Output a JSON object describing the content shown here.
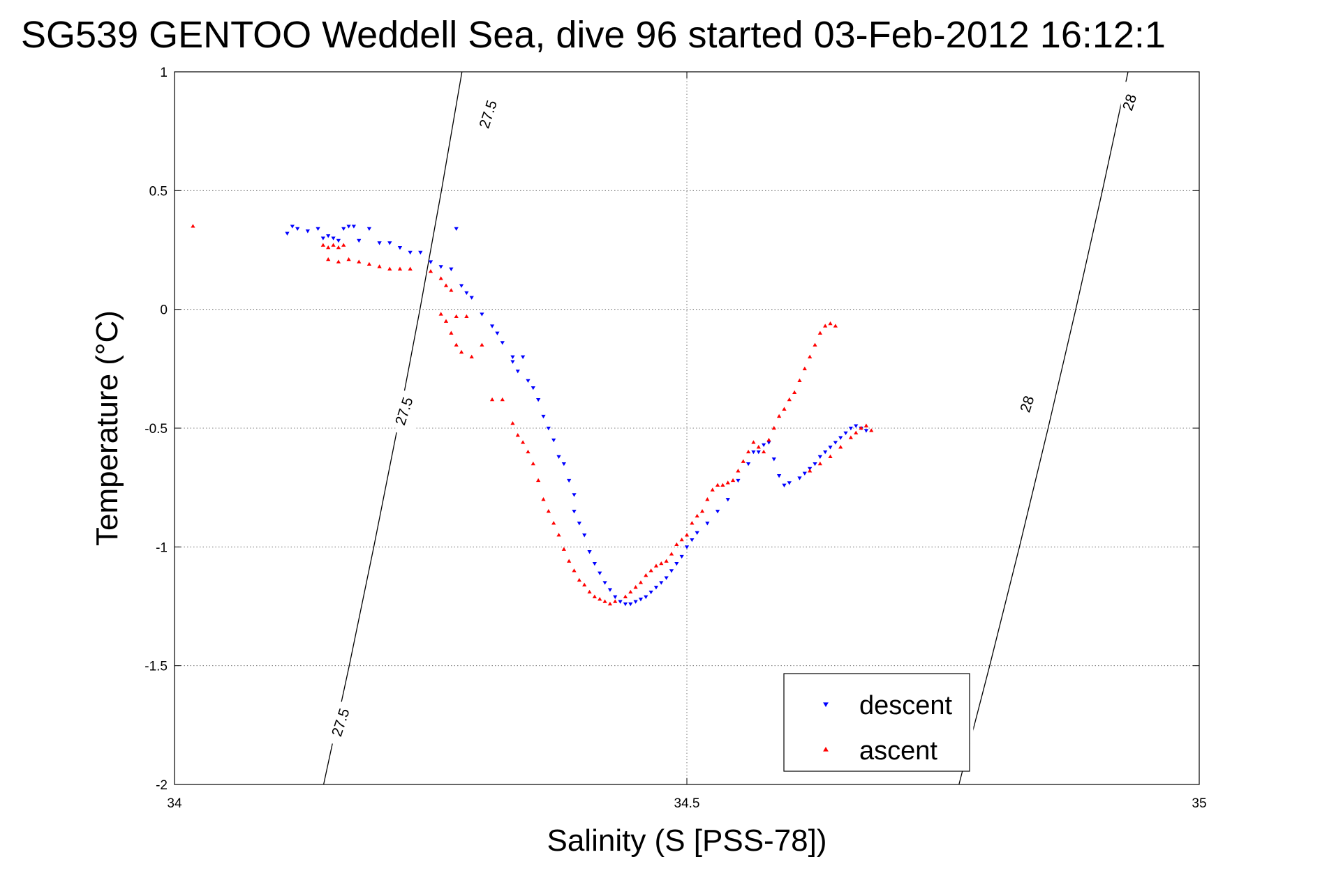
{
  "chart_data": {
    "type": "scatter",
    "title": "SG539 GENTOO Weddell Sea, dive 96 started 03-Feb-2012 16:12:1",
    "xlabel": "Salinity (S [PSS-78])",
    "ylabel": "Temperature (°C)",
    "xlim": [
      34,
      35
    ],
    "ylim": [
      -2,
      1
    ],
    "xticks": [
      34,
      34.5,
      35
    ],
    "xtick_labels": [
      "34",
      "34.5",
      "35"
    ],
    "yticks": [
      -2,
      -1.5,
      -1,
      -0.5,
      0,
      0.5,
      1
    ],
    "ytick_labels": [
      "-2",
      "-1.5",
      "-1",
      "-0.5",
      "0",
      "0.5",
      "1"
    ],
    "grid": true,
    "legend_position": "bottom-right",
    "colors": {
      "descent": "#0000ff",
      "ascent": "#ff0000",
      "contour": "#000000"
    },
    "contours": [
      {
        "level": "27.5",
        "points": [
          [
            34.1455,
            -2
          ],
          [
            34.1705,
            -1.5
          ],
          [
            34.1945,
            -1
          ],
          [
            34.2175,
            -0.5
          ],
          [
            34.2395,
            0
          ],
          [
            34.2605,
            0.5
          ],
          [
            34.2805,
            1
          ]
        ],
        "labels": [
          {
            "x": 34.163,
            "y": -1.74,
            "text": "27.5"
          },
          {
            "x": 34.225,
            "y": -0.43,
            "text": "27.5"
          },
          {
            "x": 34.307,
            "y": 0.82,
            "text": "27.5"
          }
        ]
      },
      {
        "level": "28",
        "points": [
          [
            34.7655,
            -2
          ],
          [
            34.7955,
            -1.5
          ],
          [
            34.8245,
            -1
          ],
          [
            34.8525,
            -0.5
          ],
          [
            34.8795,
            0
          ],
          [
            34.9055,
            0.5
          ],
          [
            34.9305,
            1
          ]
        ],
        "labels": [
          {
            "x": 34.77,
            "y": -1.74,
            "text": "28"
          },
          {
            "x": 34.833,
            "y": -0.4,
            "text": "28"
          },
          {
            "x": 34.933,
            "y": 0.87,
            "text": "28"
          }
        ]
      }
    ],
    "series": [
      {
        "name": "descent",
        "marker": "down-triangle",
        "points": [
          [
            34.11,
            0.32
          ],
          [
            34.115,
            0.35
          ],
          [
            34.12,
            0.34
          ],
          [
            34.13,
            0.33
          ],
          [
            34.14,
            0.34
          ],
          [
            34.145,
            0.3
          ],
          [
            34.15,
            0.31
          ],
          [
            34.155,
            0.3
          ],
          [
            34.16,
            0.29
          ],
          [
            34.165,
            0.34
          ],
          [
            34.17,
            0.35
          ],
          [
            34.175,
            0.35
          ],
          [
            34.18,
            0.29
          ],
          [
            34.19,
            0.34
          ],
          [
            34.2,
            0.28
          ],
          [
            34.21,
            0.28
          ],
          [
            34.22,
            0.26
          ],
          [
            34.23,
            0.24
          ],
          [
            34.24,
            0.24
          ],
          [
            34.25,
            0.2
          ],
          [
            34.26,
            0.18
          ],
          [
            34.27,
            0.17
          ],
          [
            34.275,
            0.34
          ],
          [
            34.28,
            0.1
          ],
          [
            34.285,
            0.07
          ],
          [
            34.29,
            0.05
          ],
          [
            34.3,
            -0.02
          ],
          [
            34.31,
            -0.07
          ],
          [
            34.315,
            -0.1
          ],
          [
            34.32,
            -0.14
          ],
          [
            34.33,
            -0.2
          ],
          [
            34.33,
            -0.22
          ],
          [
            34.335,
            -0.26
          ],
          [
            34.34,
            -0.2
          ],
          [
            34.345,
            -0.3
          ],
          [
            34.35,
            -0.33
          ],
          [
            34.355,
            -0.38
          ],
          [
            34.36,
            -0.45
          ],
          [
            34.365,
            -0.5
          ],
          [
            34.37,
            -0.55
          ],
          [
            34.375,
            -0.62
          ],
          [
            34.38,
            -0.65
          ],
          [
            34.385,
            -0.72
          ],
          [
            34.39,
            -0.78
          ],
          [
            34.39,
            -0.85
          ],
          [
            34.395,
            -0.9
          ],
          [
            34.4,
            -0.95
          ],
          [
            34.405,
            -1.02
          ],
          [
            34.41,
            -1.07
          ],
          [
            34.415,
            -1.11
          ],
          [
            34.42,
            -1.15
          ],
          [
            34.425,
            -1.18
          ],
          [
            34.43,
            -1.21
          ],
          [
            34.435,
            -1.23
          ],
          [
            34.44,
            -1.24
          ],
          [
            34.445,
            -1.24
          ],
          [
            34.45,
            -1.23
          ],
          [
            34.455,
            -1.22
          ],
          [
            34.46,
            -1.21
          ],
          [
            34.465,
            -1.19
          ],
          [
            34.47,
            -1.17
          ],
          [
            34.475,
            -1.15
          ],
          [
            34.48,
            -1.13
          ],
          [
            34.485,
            -1.1
          ],
          [
            34.49,
            -1.07
          ],
          [
            34.495,
            -1.04
          ],
          [
            34.5,
            -1.0
          ],
          [
            34.505,
            -0.97
          ],
          [
            34.51,
            -0.94
          ],
          [
            34.52,
            -0.9
          ],
          [
            34.53,
            -0.85
          ],
          [
            34.54,
            -0.8
          ],
          [
            34.55,
            -0.72
          ],
          [
            34.56,
            -0.65
          ],
          [
            34.565,
            -0.6
          ],
          [
            34.57,
            -0.6
          ],
          [
            34.575,
            -0.57
          ],
          [
            34.58,
            -0.56
          ],
          [
            34.585,
            -0.63
          ],
          [
            34.59,
            -0.7
          ],
          [
            34.595,
            -0.74
          ],
          [
            34.6,
            -0.73
          ],
          [
            34.61,
            -0.71
          ],
          [
            34.615,
            -0.69
          ],
          [
            34.62,
            -0.67
          ],
          [
            34.625,
            -0.65
          ],
          [
            34.63,
            -0.62
          ],
          [
            34.635,
            -0.6
          ],
          [
            34.64,
            -0.58
          ],
          [
            34.645,
            -0.56
          ],
          [
            34.65,
            -0.54
          ],
          [
            34.655,
            -0.52
          ],
          [
            34.66,
            -0.5
          ],
          [
            34.665,
            -0.49
          ],
          [
            34.67,
            -0.5
          ],
          [
            34.675,
            -0.51
          ]
        ]
      },
      {
        "name": "ascent",
        "marker": "up-triangle",
        "points": [
          [
            34.018,
            0.35
          ],
          [
            34.145,
            0.27
          ],
          [
            34.15,
            0.26
          ],
          [
            34.155,
            0.27
          ],
          [
            34.16,
            0.26
          ],
          [
            34.165,
            0.27
          ],
          [
            34.15,
            0.21
          ],
          [
            34.16,
            0.2
          ],
          [
            34.17,
            0.21
          ],
          [
            34.18,
            0.2
          ],
          [
            34.19,
            0.19
          ],
          [
            34.2,
            0.18
          ],
          [
            34.21,
            0.17
          ],
          [
            34.22,
            0.17
          ],
          [
            34.23,
            0.17
          ],
          [
            34.25,
            0.16
          ],
          [
            34.26,
            0.13
          ],
          [
            34.265,
            0.1
          ],
          [
            34.27,
            0.08
          ],
          [
            34.26,
            -0.02
          ],
          [
            34.265,
            -0.05
          ],
          [
            34.27,
            -0.1
          ],
          [
            34.275,
            -0.15
          ],
          [
            34.28,
            -0.18
          ],
          [
            34.285,
            -0.03
          ],
          [
            34.275,
            -0.03
          ],
          [
            34.29,
            -0.2
          ],
          [
            34.3,
            -0.15
          ],
          [
            34.31,
            -0.38
          ],
          [
            34.32,
            -0.38
          ],
          [
            34.33,
            -0.48
          ],
          [
            34.335,
            -0.53
          ],
          [
            34.34,
            -0.56
          ],
          [
            34.345,
            -0.6
          ],
          [
            34.35,
            -0.65
          ],
          [
            34.355,
            -0.72
          ],
          [
            34.36,
            -0.8
          ],
          [
            34.365,
            -0.85
          ],
          [
            34.37,
            -0.9
          ],
          [
            34.375,
            -0.95
          ],
          [
            34.38,
            -1.01
          ],
          [
            34.385,
            -1.06
          ],
          [
            34.39,
            -1.1
          ],
          [
            34.395,
            -1.14
          ],
          [
            34.4,
            -1.16
          ],
          [
            34.405,
            -1.19
          ],
          [
            34.41,
            -1.21
          ],
          [
            34.415,
            -1.22
          ],
          [
            34.42,
            -1.23
          ],
          [
            34.425,
            -1.24
          ],
          [
            34.43,
            -1.23
          ],
          [
            34.44,
            -1.21
          ],
          [
            34.445,
            -1.19
          ],
          [
            34.45,
            -1.17
          ],
          [
            34.455,
            -1.15
          ],
          [
            34.46,
            -1.12
          ],
          [
            34.465,
            -1.1
          ],
          [
            34.47,
            -1.08
          ],
          [
            34.475,
            -1.07
          ],
          [
            34.48,
            -1.06
          ],
          [
            34.485,
            -1.03
          ],
          [
            34.49,
            -0.99
          ],
          [
            34.495,
            -0.97
          ],
          [
            34.5,
            -0.95
          ],
          [
            34.505,
            -0.9
          ],
          [
            34.51,
            -0.87
          ],
          [
            34.515,
            -0.85
          ],
          [
            34.52,
            -0.8
          ],
          [
            34.525,
            -0.76
          ],
          [
            34.53,
            -0.74
          ],
          [
            34.535,
            -0.74
          ],
          [
            34.54,
            -0.73
          ],
          [
            34.545,
            -0.72
          ],
          [
            34.55,
            -0.68
          ],
          [
            34.555,
            -0.64
          ],
          [
            34.56,
            -0.6
          ],
          [
            34.565,
            -0.56
          ],
          [
            34.57,
            -0.58
          ],
          [
            34.575,
            -0.6
          ],
          [
            34.58,
            -0.55
          ],
          [
            34.585,
            -0.5
          ],
          [
            34.59,
            -0.45
          ],
          [
            34.595,
            -0.42
          ],
          [
            34.6,
            -0.38
          ],
          [
            34.605,
            -0.35
          ],
          [
            34.61,
            -0.3
          ],
          [
            34.615,
            -0.25
          ],
          [
            34.62,
            -0.2
          ],
          [
            34.625,
            -0.15
          ],
          [
            34.63,
            -0.1
          ],
          [
            34.635,
            -0.07
          ],
          [
            34.64,
            -0.06
          ],
          [
            34.645,
            -0.07
          ],
          [
            34.62,
            -0.68
          ],
          [
            34.63,
            -0.65
          ],
          [
            34.64,
            -0.62
          ],
          [
            34.65,
            -0.58
          ],
          [
            34.66,
            -0.54
          ],
          [
            34.665,
            -0.52
          ],
          [
            34.67,
            -0.5
          ],
          [
            34.675,
            -0.49
          ],
          [
            34.68,
            -0.51
          ]
        ]
      }
    ]
  }
}
